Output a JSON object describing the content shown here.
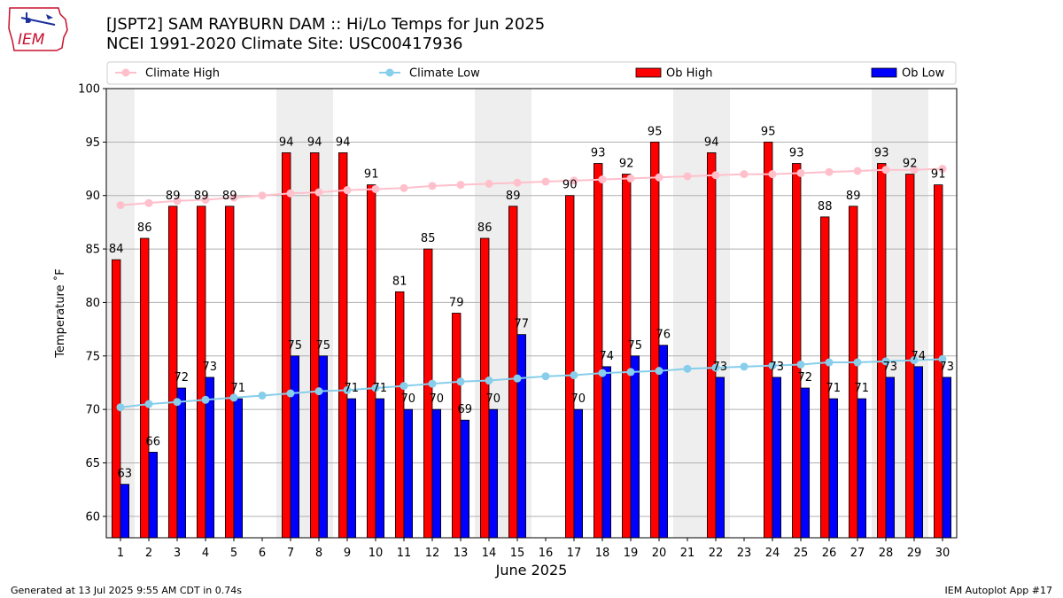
{
  "header": {
    "logo_text": "IEM",
    "title_line1": "[JSPT2] SAM RAYBURN DAM :: Hi/Lo Temps for Jun 2025",
    "title_line2": "NCEI 1991-2020 Climate Site: USC00417936"
  },
  "footer": {
    "generated": "Generated at 13 Jul 2025 9:55 AM CDT in 0.74s",
    "app": "IEM Autoplot App #17"
  },
  "colors": {
    "ob_high": "#ff0000",
    "ob_low": "#0000ff",
    "climate_high": "#ffc0cb",
    "climate_low": "#87ceeb",
    "weekend_band": "#eeeeee"
  },
  "chart_data": {
    "type": "bar",
    "xlabel": "June 2025",
    "ylabel": "Temperature ˚F",
    "ylim": [
      58,
      100
    ],
    "yticks": [
      60,
      65,
      70,
      75,
      80,
      85,
      90,
      95,
      100
    ],
    "grid": true,
    "legend_position": "top",
    "categories": [
      1,
      2,
      3,
      4,
      5,
      6,
      7,
      8,
      9,
      10,
      11,
      12,
      13,
      14,
      15,
      16,
      17,
      18,
      19,
      20,
      21,
      22,
      23,
      24,
      25,
      26,
      27,
      28,
      29,
      30
    ],
    "shaded_days": [
      1,
      7,
      8,
      14,
      15,
      21,
      22,
      28,
      29
    ],
    "series": [
      {
        "name": "Climate High",
        "kind": "line",
        "values": [
          89.1,
          89.3,
          89.5,
          89.6,
          89.8,
          90.0,
          90.2,
          90.3,
          90.5,
          90.6,
          90.7,
          90.9,
          91.0,
          91.1,
          91.2,
          91.3,
          91.4,
          91.5,
          91.6,
          91.7,
          91.8,
          91.9,
          92.0,
          92.0,
          92.1,
          92.2,
          92.3,
          92.4,
          92.4,
          92.5
        ]
      },
      {
        "name": "Climate Low",
        "kind": "line",
        "values": [
          70.2,
          70.5,
          70.7,
          70.9,
          71.1,
          71.3,
          71.5,
          71.7,
          71.8,
          72.0,
          72.2,
          72.4,
          72.6,
          72.7,
          72.9,
          73.1,
          73.2,
          73.4,
          73.5,
          73.6,
          73.8,
          73.9,
          74.0,
          74.1,
          74.2,
          74.4,
          74.4,
          74.5,
          74.6,
          74.7
        ]
      },
      {
        "name": "Ob High",
        "kind": "bar",
        "values": [
          84,
          86,
          89,
          89,
          89,
          null,
          94,
          94,
          94,
          91,
          81,
          85,
          79,
          86,
          89,
          null,
          90,
          93,
          92,
          95,
          null,
          94,
          null,
          95,
          93,
          88,
          89,
          93,
          92,
          91
        ]
      },
      {
        "name": "Ob Low",
        "kind": "bar",
        "values": [
          63,
          66,
          72,
          73,
          71,
          null,
          75,
          75,
          71,
          71,
          70,
          70,
          69,
          70,
          77,
          null,
          70,
          74,
          75,
          76,
          null,
          73,
          null,
          73,
          72,
          71,
          71,
          73,
          74,
          73
        ]
      }
    ]
  }
}
